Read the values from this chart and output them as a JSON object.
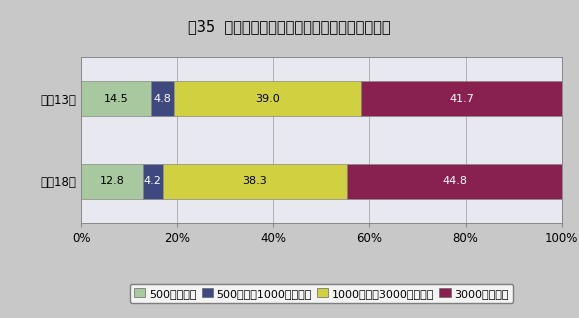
{
  "title": "図35  資本金階級別子会社のある企業数の構成比",
  "categories": [
    "平成13年",
    "平成18年"
  ],
  "series": [
    {
      "label": "500万円未満",
      "values": [
        14.5,
        12.8
      ],
      "color": "#a8c8a0",
      "text_color": "black"
    },
    {
      "label": "500万円～1000万円未満",
      "values": [
        4.8,
        4.2
      ],
      "color": "#404880",
      "text_color": "white"
    },
    {
      "label": "1000万円～3000万円未満",
      "values": [
        39.0,
        38.3
      ],
      "color": "#d0d040",
      "text_color": "black"
    },
    {
      "label": "3000万円以上",
      "values": [
        41.7,
        44.8
      ],
      "color": "#882050",
      "text_color": "white"
    }
  ],
  "xlim": [
    0,
    100
  ],
  "xticks": [
    0,
    20,
    40,
    60,
    80,
    100
  ],
  "xticklabels": [
    "0%",
    "20%",
    "40%",
    "60%",
    "80%",
    "100%"
  ],
  "background_color": "#c8c8c8",
  "plot_bg_color": "#e8e8f0",
  "bar_height": 0.42,
  "title_fontsize": 10.5,
  "legend_fontsize": 8,
  "tick_fontsize": 8.5,
  "label_fontsize": 8
}
